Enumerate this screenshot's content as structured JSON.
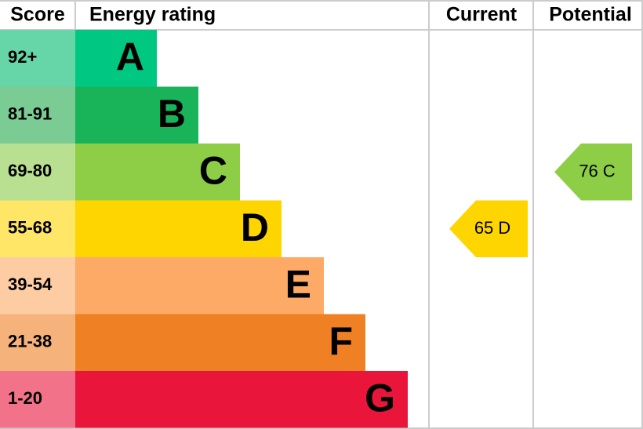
{
  "header": {
    "score": "Score",
    "rating": "Energy rating",
    "current": "Current",
    "potential": "Potential"
  },
  "bands": [
    {
      "score": "92+",
      "letter": "A",
      "color": "#00c781",
      "tint": "#66d6a8"
    },
    {
      "score": "81-91",
      "letter": "B",
      "color": "#19b459",
      "tint": "#7bcc94"
    },
    {
      "score": "69-80",
      "letter": "C",
      "color": "#8dce46",
      "tint": "#b9e090"
    },
    {
      "score": "55-68",
      "letter": "D",
      "color": "#ffd500",
      "tint": "#ffe666"
    },
    {
      "score": "39-54",
      "letter": "E",
      "color": "#fcaa65",
      "tint": "#fdcca3"
    },
    {
      "score": "21-38",
      "letter": "F",
      "color": "#ef8023",
      "tint": "#f5b37b"
    },
    {
      "score": "1-20",
      "letter": "G",
      "color": "#e9153b",
      "tint": "#f27389"
    }
  ],
  "current": {
    "score": 65,
    "letter": "D"
  },
  "potential": {
    "score": 76,
    "letter": "C"
  }
}
